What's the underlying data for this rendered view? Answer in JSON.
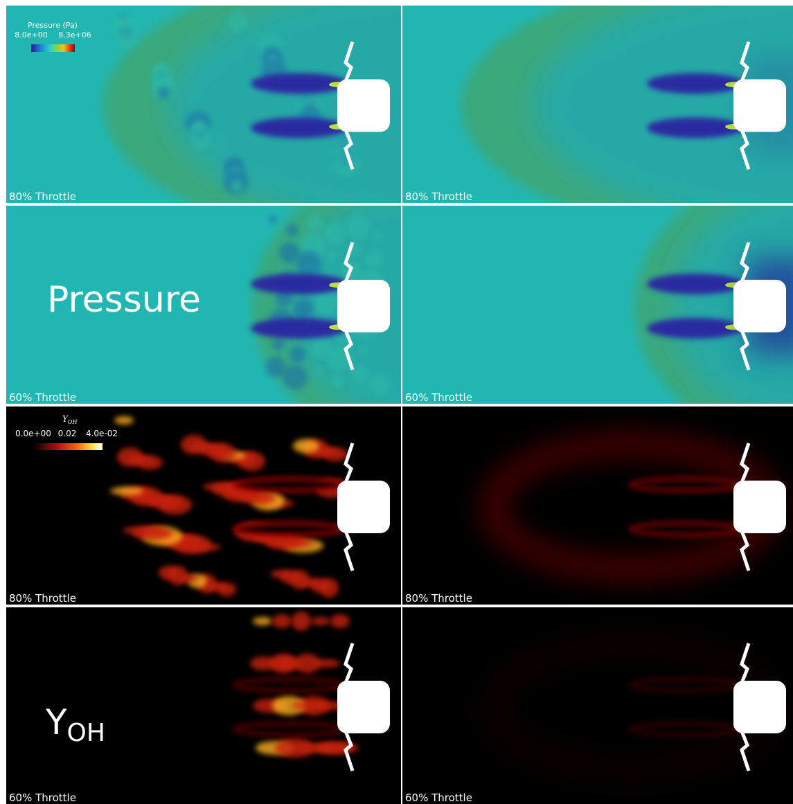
{
  "pressure": {
    "label": "Pressure",
    "colorbar": {
      "title": "Pressure (Pa)",
      "min_label": "8.0e+00",
      "max_label": "8.3e+06"
    },
    "panels": [
      {
        "label": "80% Throttle"
      },
      {
        "label": "80% Throttle"
      },
      {
        "label": "60% Throttle"
      },
      {
        "label": "60% Throttle"
      }
    ]
  },
  "yoh": {
    "label_main": "Y",
    "label_sub": "OH",
    "colorbar": {
      "title_main": "Y",
      "title_sub": "OH",
      "ticks": [
        "0.0e+00",
        "0.02",
        "4.0e-02"
      ]
    },
    "panels": [
      {
        "label": "80% Throttle"
      },
      {
        "label": "80% Throttle"
      },
      {
        "label": "60% Throttle"
      },
      {
        "label": "60% Throttle"
      }
    ]
  }
}
